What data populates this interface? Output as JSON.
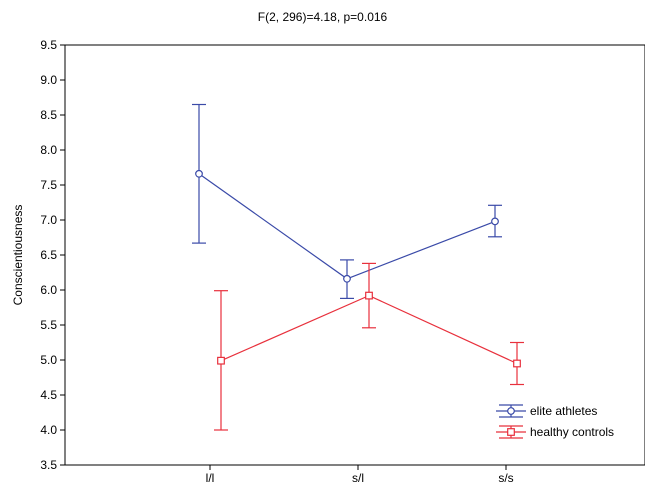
{
  "chart_data": {
    "type": "line",
    "title": "F(2, 296)=4.18, p=0.016",
    "xlabel": "",
    "ylabel": "Conscientiousness",
    "categories": [
      "l/l",
      "s/l",
      "s/s"
    ],
    "ylim": [
      3.5,
      9.5
    ],
    "yticks": [
      "3.5",
      "4.0",
      "4.5",
      "5.0",
      "5.5",
      "6.0",
      "6.5",
      "7.0",
      "7.5",
      "8.0",
      "8.5",
      "9.0",
      "9.5"
    ],
    "grid": false,
    "legend_position": "bottom-right",
    "series": [
      {
        "name": "elite athletes",
        "color": "#3a4aa8",
        "marker": "circle",
        "values": [
          7.66,
          6.16,
          6.98
        ],
        "error_low": [
          6.67,
          5.88,
          6.76
        ],
        "error_high": [
          8.65,
          6.43,
          7.21
        ]
      },
      {
        "name": "healthy controls",
        "color": "#e8303c",
        "marker": "square",
        "values": [
          4.99,
          5.92,
          4.95
        ],
        "error_low": [
          4.0,
          5.46,
          4.65
        ],
        "error_high": [
          5.99,
          6.38,
          5.25
        ]
      }
    ]
  }
}
